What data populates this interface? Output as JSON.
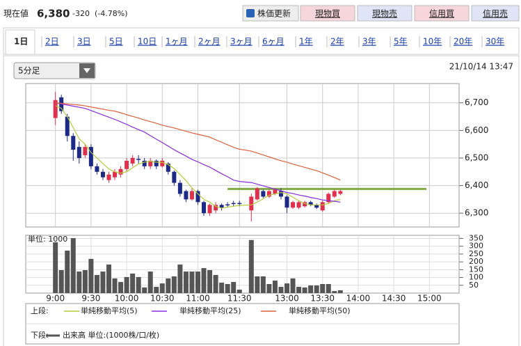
{
  "header": {
    "label": "現在値",
    "price": "6,380",
    "change": "-320",
    "change_pct": "(-4.78%)"
  },
  "buttons": [
    "株価更新",
    "現物買",
    "現物売",
    "信用買",
    "信用売"
  ],
  "tabs": [
    "1日",
    "2日",
    "3日",
    "5日",
    "10日",
    "1ヶ月",
    "2ヶ月",
    "3ヶ月",
    "6ヶ月",
    "1年",
    "2年",
    "3年",
    "5年",
    "10年",
    "20年",
    "30年"
  ],
  "selected_tab": 0,
  "dropdown": "5分足",
  "timestamp": "21/10/14 13:47",
  "legend_upper_label": "上段:",
  "legend_lower_label": "下段:",
  "chart_data": [
    {
      "type": "candlestick",
      "x": [
        0,
        1,
        2,
        3,
        4,
        5,
        6,
        7,
        8,
        9,
        10,
        11,
        12,
        13,
        14,
        15,
        16,
        17,
        18,
        19,
        20,
        21,
        22,
        23,
        24,
        25,
        26,
        27,
        28,
        29,
        30,
        31,
        33,
        34,
        35,
        36,
        37,
        38,
        39,
        40,
        41,
        42,
        43,
        44,
        45,
        46,
        47,
        48
      ],
      "open": [
        6645,
        6720,
        6650,
        6580,
        6540,
        6510,
        6540,
        6470,
        6450,
        6420,
        6430,
        6440,
        6460,
        6480,
        6495,
        6490,
        6470,
        6490,
        6470,
        6480,
        6450,
        6410,
        6380,
        6350,
        6380,
        6340,
        6300,
        6310,
        6330,
        6330,
        6335,
        6335,
        6310,
        6350,
        6380,
        6360,
        6370,
        6380,
        6360,
        6320,
        6320,
        6325,
        6340,
        6330,
        6310,
        6340,
        6360,
        6370
      ],
      "high": [
        6740,
        6730,
        6660,
        6590,
        6560,
        6550,
        6550,
        6480,
        6460,
        6450,
        6460,
        6470,
        6500,
        6510,
        6510,
        6500,
        6500,
        6495,
        6500,
        6485,
        6455,
        6420,
        6385,
        6390,
        6385,
        6345,
        6335,
        6340,
        6335,
        6340,
        6345,
        6345,
        6370,
        6395,
        6385,
        6385,
        6390,
        6390,
        6365,
        6345,
        6345,
        6345,
        6345,
        6335,
        6345,
        6375,
        6385,
        6385
      ],
      "low": [
        6620,
        6660,
        6560,
        6490,
        6480,
        6500,
        6460,
        6440,
        6420,
        6410,
        6420,
        6430,
        6450,
        6470,
        6480,
        6460,
        6460,
        6460,
        6465,
        6440,
        6400,
        6360,
        6340,
        6345,
        6330,
        6290,
        6290,
        6300,
        6310,
        6320,
        6325,
        6325,
        6270,
        6345,
        6355,
        6355,
        6365,
        6350,
        6300,
        6315,
        6315,
        6320,
        6325,
        6315,
        6305,
        6335,
        6355,
        6365
      ],
      "close": [
        6710,
        6670,
        6580,
        6530,
        6500,
        6540,
        6470,
        6450,
        6430,
        6440,
        6450,
        6460,
        6490,
        6500,
        6495,
        6470,
        6490,
        6470,
        6490,
        6450,
        6410,
        6370,
        6350,
        6380,
        6340,
        6300,
        6330,
        6330,
        6320,
        6330,
        6335,
        6335,
        6360,
        6390,
        6360,
        6380,
        6385,
        6360,
        6320,
        6340,
        6340,
        6340,
        6330,
        6320,
        6340,
        6370,
        6380,
        6380
      ],
      "up_color": "#e0304e",
      "down_color": "#1c2a86",
      "series": [
        {
          "name": "単純移動平均(5)",
          "color": "#b5cc3a",
          "values": [
            6690,
            6680,
            6650,
            6610,
            6570,
            6550,
            6520,
            6500,
            6480,
            6460,
            6450,
            6445,
            6450,
            6465,
            6478,
            6485,
            6488,
            6485,
            6484,
            6476,
            6462,
            6440,
            6418,
            6392,
            6370,
            6350,
            6340,
            6325,
            6318,
            6322,
            6325,
            6328,
            6330,
            6340,
            6352,
            6365,
            6370,
            6375,
            6370,
            6358,
            6345,
            6335,
            6330,
            6330,
            6330,
            6335,
            6345,
            6350
          ]
        },
        {
          "name": "単純移動平均(25)",
          "color": "#8a2be2",
          "values": [
            6700,
            6696,
            6692,
            6688,
            6684,
            6680,
            6672,
            6664,
            6656,
            6648,
            6640,
            6631,
            6622,
            6612,
            6603,
            6594,
            6581,
            6568,
            6556,
            6543,
            6530,
            6518,
            6507,
            6495,
            6486,
            6476,
            6467,
            6455,
            6443,
            6432,
            6420,
            6415,
            6411,
            6405,
            6399,
            6393,
            6387,
            6381,
            6375,
            6371,
            6366,
            6362,
            6357,
            6353,
            6348,
            6345,
            6343,
            6340
          ]
        },
        {
          "name": "単純移動平均(50)",
          "color": "#e0603a",
          "values": [
            6700,
            6698,
            6696,
            6694,
            6692,
            6689,
            6685,
            6681,
            6677,
            6673,
            6670,
            6664,
            6657,
            6651,
            6645,
            6638,
            6632,
            6626,
            6619,
            6614,
            6609,
            6603,
            6597,
            6591,
            6586,
            6581,
            6576,
            6566,
            6557,
            6548,
            6539,
            6532,
            6525,
            6518,
            6511,
            6504,
            6497,
            6490,
            6485,
            6478,
            6472,
            6466,
            6460,
            6454,
            6446,
            6438,
            6429,
            6420
          ]
        }
      ],
      "reference_line": {
        "value": 6388,
        "x": [
          29,
          62.5
        ],
        "color": "#80a845"
      },
      "xlim": [
        -5,
        68
      ],
      "ylim": [
        6250,
        6770
      ],
      "yticks": [
        {
          "value": 6300,
          "label": "6,300"
        },
        {
          "value": 6400,
          "label": "6,400"
        },
        {
          "value": 6500,
          "label": "6,500"
        },
        {
          "value": 6600,
          "label": "6,600"
        },
        {
          "value": 6700,
          "label": "6,700"
        }
      ],
      "grid": true
    },
    {
      "type": "bar",
      "unit_label": "単位: 1000",
      "x": [
        0,
        1,
        2,
        3,
        4,
        5,
        6,
        7,
        8,
        9,
        10,
        11,
        12,
        13,
        14,
        15,
        16,
        17,
        18,
        19,
        20,
        21,
        22,
        23,
        24,
        25,
        26,
        27,
        28,
        29,
        30,
        31,
        33,
        34,
        35,
        36,
        37,
        38,
        39,
        40,
        41,
        42,
        43,
        44,
        45,
        46,
        47,
        48
      ],
      "series": [
        {
          "name": "出来高 単位:(1000株/口/枚)",
          "color": "#555555",
          "values": [
            325,
            147,
            272,
            352,
            138,
            147,
            219,
            116,
            138,
            183,
            94,
            71,
            103,
            125,
            103,
            36,
            138,
            40,
            62,
            94,
            107,
            183,
            138,
            138,
            138,
            160,
            147,
            116,
            67,
            58,
            71,
            22,
            340,
            107,
            107,
            58,
            80,
            40,
            62,
            94,
            40,
            36,
            49,
            49,
            58,
            58,
            13,
            18
          ]
        }
      ],
      "xlim": [
        -5,
        68
      ],
      "ylim": [
        0,
        370
      ],
      "yticks": [
        50,
        100,
        150,
        200,
        250,
        300,
        350
      ],
      "xticks": [
        {
          "value": 0,
          "label": "9:00"
        },
        {
          "value": 6,
          "label": "9:30"
        },
        {
          "value": 12,
          "label": "10:00"
        },
        {
          "value": 18,
          "label": "10:30"
        },
        {
          "value": 24,
          "label": "11:00"
        },
        {
          "value": 31,
          "label": "11:30"
        },
        {
          "value": 39,
          "label": "13:00"
        },
        {
          "value": 45,
          "label": "13:30"
        },
        {
          "value": 51,
          "label": "14:00"
        },
        {
          "value": 57,
          "label": "14:30"
        },
        {
          "value": 63,
          "label": "15:00"
        }
      ],
      "grid": true
    }
  ]
}
